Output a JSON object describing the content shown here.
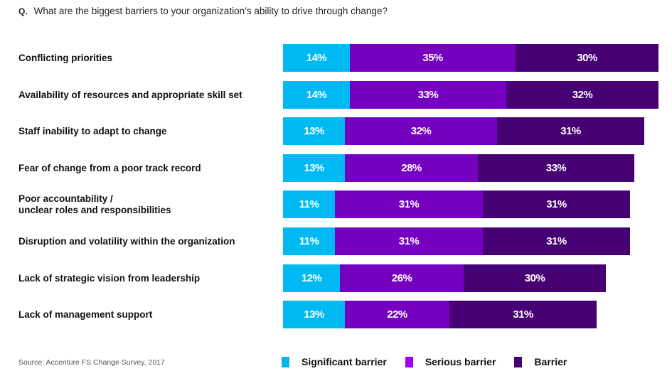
{
  "question": {
    "prefix": "Q.",
    "text": "What are the biggest barriers to your organization’s ability to drive through change?"
  },
  "source": "Source: Accenture FS Change Survey, 2017",
  "colors": {
    "significant": "#00b9f2",
    "serious": "#7500c0",
    "barrier": "#460073",
    "serious_legend": "#a100ff"
  },
  "chart_data": {
    "type": "bar",
    "orientation": "horizontal",
    "stacked": true,
    "title": "What are the biggest barriers to your organization’s ability to drive through change?",
    "categories": [
      "Conflicting priorities",
      "Availability of resources and appropriate skill set",
      "Staff inability to adapt to change",
      "Fear of change from a poor track record",
      "Poor accountability / unclear roles and responsibilities",
      "Disruption and volatility within the organization",
      "Lack of strategic vision from leadership",
      "Lack of management support"
    ],
    "series": [
      {
        "name": "Significant barrier",
        "values": [
          14,
          14,
          13,
          13,
          11,
          11,
          12,
          13
        ]
      },
      {
        "name": "Serious barrier",
        "values": [
          35,
          33,
          32,
          28,
          31,
          31,
          26,
          22
        ]
      },
      {
        "name": "Barrier",
        "values": [
          30,
          32,
          31,
          33,
          31,
          31,
          30,
          31
        ]
      }
    ],
    "unit": "%",
    "legend_position": "bottom",
    "grid": false
  },
  "rows": [
    {
      "label_lines": [
        "Conflicting priorities"
      ]
    },
    {
      "label_lines": [
        "Availability of resources and appropriate skill set"
      ]
    },
    {
      "label_lines": [
        "Staff inability to adapt to change"
      ]
    },
    {
      "label_lines": [
        "Fear of change from a poor track record"
      ]
    },
    {
      "label_lines": [
        "Poor accountability /",
        "unclear roles and responsibilities"
      ]
    },
    {
      "label_lines": [
        "Disruption and volatility within the organization"
      ]
    },
    {
      "label_lines": [
        "Lack of strategic vision from leadership"
      ]
    },
    {
      "label_lines": [
        "Lack of management support"
      ]
    }
  ],
  "legend": [
    {
      "label": "Significant barrier"
    },
    {
      "label": "Serious barrier"
    },
    {
      "label": "Barrier"
    }
  ]
}
